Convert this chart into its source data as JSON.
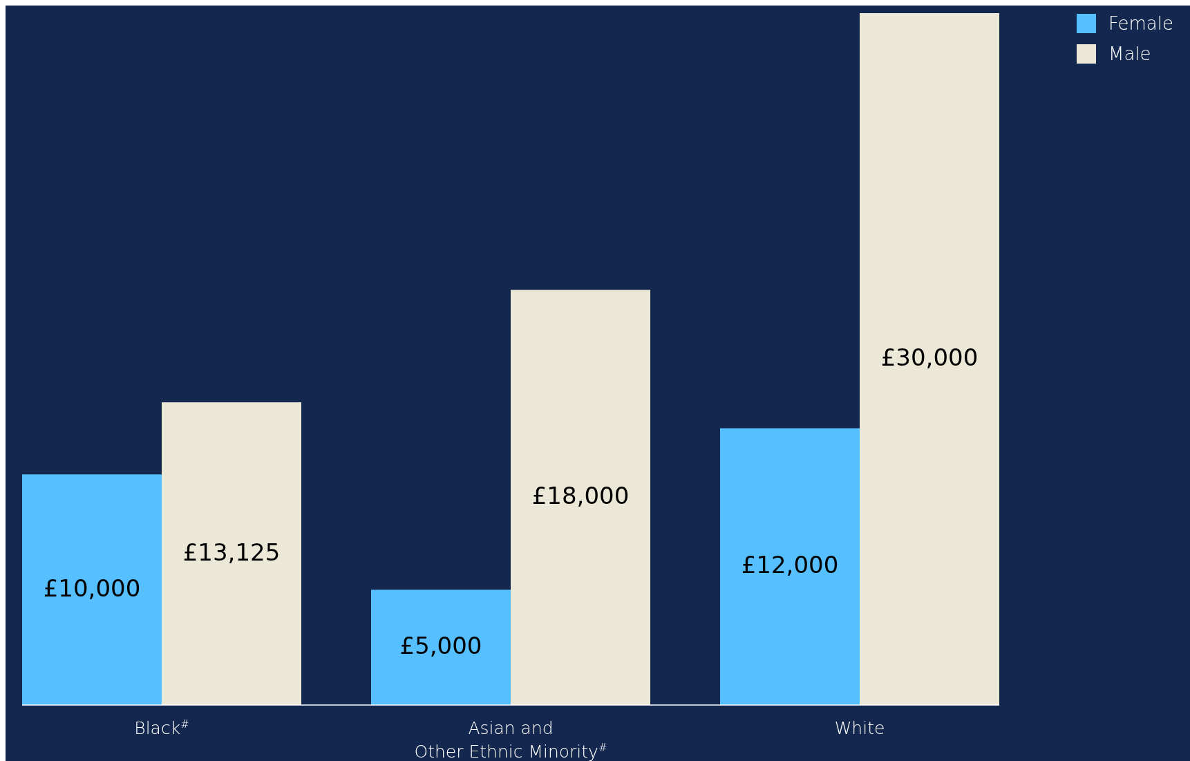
{
  "chart_data": {
    "type": "bar",
    "categories": [
      "Black$^{#}$",
      "Asian and\nOther Ethnic Minority$^{#}$",
      "White"
    ],
    "series": [
      {
        "name": "Female",
        "color": "#56bfff",
        "values": [
          10000,
          5000,
          12000
        ],
        "value_labels": [
          "£10,000",
          "£5,000",
          "£12,000"
        ]
      },
      {
        "name": "Male",
        "color": "#ece8d8",
        "values": [
          13125,
          18000,
          30000
        ],
        "value_labels": [
          "£13,125",
          "£18,000",
          "£30,000"
        ]
      }
    ],
    "ylim": [
      0,
      30000
    ],
    "legend": "top right"
  }
}
